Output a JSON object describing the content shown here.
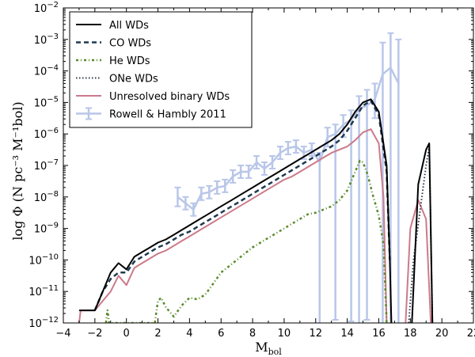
{
  "chart_data": {
    "type": "line",
    "title": "",
    "xlabel": "M",
    "xlabel_sub": "bol",
    "ylabel": "log Φ (N pc⁻³ M⁻¹bol)",
    "xlim": [
      -4,
      22
    ],
    "ylim_exp": [
      -12,
      -2
    ],
    "yscale": "log",
    "xticks": [
      -4,
      -2,
      0,
      2,
      4,
      6,
      8,
      10,
      12,
      14,
      16,
      18,
      20,
      22
    ],
    "yticks_exp": [
      -12,
      -11,
      -10,
      -9,
      -8,
      -7,
      -6,
      -5,
      -4,
      -3,
      -2
    ],
    "legend": {
      "position": "top-left",
      "entries": [
        {
          "label": "All WDs",
          "series": "all"
        },
        {
          "label": "CO WDs",
          "series": "co"
        },
        {
          "label": "He WDs",
          "series": "he"
        },
        {
          "label": "ONe WDs",
          "series": "one"
        },
        {
          "label": "Unresolved binary WDs",
          "series": "bin"
        },
        {
          "label": "Rowell & Hambly 2011",
          "series": "obs"
        }
      ]
    },
    "series": [
      {
        "id": "all",
        "name": "All WDs",
        "color": "#000000",
        "dash": "",
        "width": 2,
        "x": [
          -3,
          -2,
          -1.5,
          -1,
          -0.5,
          0,
          0.5,
          1,
          1.5,
          2,
          2.5,
          3,
          3.5,
          4,
          4.5,
          5,
          5.5,
          6,
          6.5,
          7,
          7.5,
          8,
          8.5,
          9,
          9.5,
          10,
          10.5,
          11,
          11.5,
          12,
          12.5,
          13,
          13.5,
          14,
          14.5,
          15,
          15.5,
          16,
          16.5,
          16.7,
          16.8
        ],
        "logy": [
          -11.6,
          -11.6,
          -11.0,
          -10.4,
          -10.1,
          -10.3,
          -9.9,
          -9.75,
          -9.6,
          -9.45,
          -9.35,
          -9.2,
          -9.05,
          -8.9,
          -8.75,
          -8.6,
          -8.45,
          -8.3,
          -8.15,
          -8.0,
          -7.85,
          -7.7,
          -7.55,
          -7.4,
          -7.25,
          -7.1,
          -6.95,
          -6.8,
          -6.65,
          -6.5,
          -6.35,
          -6.2,
          -6.0,
          -5.7,
          -5.3,
          -5.0,
          -4.9,
          -5.3,
          -7.0,
          -10.0,
          -12
        ]
      },
      {
        "id": "all2",
        "name": "All WDs (faint peak)",
        "color": "#000000",
        "dash": "",
        "width": 2,
        "x": [
          18.1,
          18.5,
          19.0,
          19.2,
          19.4
        ],
        "logy": [
          -12,
          -7.6,
          -6.5,
          -6.3,
          -12
        ]
      },
      {
        "id": "co",
        "name": "CO WDs",
        "color": "#1f3a50",
        "dash": "6,4",
        "width": 2.5,
        "x": [
          -2,
          -1.5,
          -1,
          -0.5,
          0,
          0.5,
          1,
          1.5,
          2,
          2.5,
          3,
          3.5,
          4,
          4.5,
          5,
          5.5,
          6,
          6.5,
          7,
          7.5,
          8,
          8.5,
          9,
          9.5,
          10,
          10.5,
          11,
          11.5,
          12,
          12.5,
          13,
          13.5,
          14,
          14.5,
          15,
          15.5,
          16,
          16.5,
          16.7
        ],
        "logy": [
          -11.6,
          -11.0,
          -10.6,
          -10.4,
          -10.4,
          -10.05,
          -9.9,
          -9.75,
          -9.6,
          -9.5,
          -9.35,
          -9.2,
          -9.1,
          -8.95,
          -8.8,
          -8.65,
          -8.5,
          -8.35,
          -8.2,
          -8.05,
          -7.9,
          -7.75,
          -7.6,
          -7.45,
          -7.3,
          -7.15,
          -7.0,
          -6.85,
          -6.7,
          -6.55,
          -6.4,
          -6.2,
          -5.9,
          -5.5,
          -5.1,
          -4.95,
          -5.4,
          -7.2,
          -10.0
        ]
      },
      {
        "id": "he",
        "name": "He WDs",
        "color": "#5a8a2a",
        "dash": "3,3,1,3",
        "width": 2.5,
        "x": [
          -1.3,
          -1.2,
          -1.1,
          1.8,
          2.0,
          2.2,
          2.5,
          3.0,
          3.5,
          4.0,
          4.5,
          5.0,
          5.5,
          6.0,
          6.5,
          7.0,
          7.5,
          8.0,
          8.5,
          9.0,
          9.5,
          10.0,
          10.5,
          11.0,
          11.5,
          12.0,
          12.5,
          13.0,
          13.5,
          14.0,
          14.5,
          14.8,
          15.0,
          15.3,
          15.6,
          16.0,
          16.3,
          16.5
        ],
        "logy": [
          -12,
          -11.6,
          -12,
          -12,
          -11.3,
          -11.2,
          -11.5,
          -11.8,
          -11.45,
          -11.2,
          -11.25,
          -11.1,
          -10.75,
          -10.4,
          -10.2,
          -10.0,
          -9.8,
          -9.6,
          -9.45,
          -9.3,
          -9.15,
          -9.0,
          -8.85,
          -8.7,
          -8.55,
          -8.5,
          -8.4,
          -8.3,
          -8.1,
          -7.8,
          -7.2,
          -6.85,
          -6.9,
          -7.3,
          -7.9,
          -8.6,
          -9.5,
          -12
        ]
      },
      {
        "id": "one",
        "name": "ONe WDs",
        "color": "#2a3a4a",
        "dash": "1.5,2.5",
        "width": 2,
        "x": [
          17.9,
          18.2,
          18.6,
          19.0,
          19.2,
          19.4
        ],
        "logy": [
          -12,
          -10.0,
          -8.5,
          -7.0,
          -6.4,
          -12
        ]
      },
      {
        "id": "bin",
        "name": "Unresolved binary WDs",
        "color": "#cc7a8a",
        "dash": "",
        "width": 2,
        "x": [
          -3,
          -2.9,
          -2.6,
          -2,
          -1.5,
          -1,
          -0.5,
          0,
          0.5,
          1,
          1.5,
          2,
          2.5,
          3,
          3.5,
          4,
          4.5,
          5,
          5.5,
          6,
          6.5,
          7,
          7.5,
          8,
          8.5,
          9,
          9.5,
          10,
          10.5,
          11,
          11.5,
          12,
          12.5,
          13,
          13.5,
          14,
          14.5,
          15,
          15.5,
          16,
          16.3,
          16.5
        ],
        "logy": [
          -12,
          -11.6,
          -11.6,
          -11.6,
          -11.3,
          -11.0,
          -10.5,
          -10.8,
          -10.25,
          -10.1,
          -9.95,
          -9.8,
          -9.7,
          -9.55,
          -9.4,
          -9.25,
          -9.1,
          -8.95,
          -8.8,
          -8.65,
          -8.5,
          -8.35,
          -8.2,
          -8.05,
          -7.9,
          -7.75,
          -7.6,
          -7.45,
          -7.35,
          -7.2,
          -7.05,
          -6.9,
          -6.75,
          -6.6,
          -6.5,
          -6.4,
          -6.2,
          -5.95,
          -5.85,
          -6.3,
          -8.0,
          -12
        ]
      },
      {
        "id": "bin2",
        "name": "Unresolved binary WDs (faint)",
        "color": "#cc7a8a",
        "dash": "",
        "width": 2,
        "x": [
          17.7,
          18.0,
          18.5,
          19.0,
          19.3
        ],
        "logy": [
          -12,
          -9.0,
          -8.1,
          -8.7,
          -12
        ]
      }
    ],
    "observations": {
      "name": "Rowell & Hambly 2011",
      "color": "#b8c6e8",
      "x": [
        3.25,
        3.75,
        4.25,
        4.75,
        5.25,
        5.75,
        6.25,
        6.75,
        7.25,
        7.75,
        8.25,
        8.75,
        9.25,
        9.75,
        10.25,
        10.75,
        11.25,
        11.75,
        12.25,
        12.75,
        13.25,
        13.75,
        14.25,
        14.75,
        15.25,
        15.75,
        16.25,
        16.75,
        17.25
      ],
      "logy": [
        -8.0,
        -8.2,
        -8.4,
        -7.9,
        -7.85,
        -7.7,
        -7.65,
        -7.35,
        -7.2,
        -7.2,
        -6.9,
        -7.1,
        -6.9,
        -6.6,
        -6.45,
        -6.4,
        -6.6,
        -6.5,
        -6.9,
        -6.1,
        -6.0,
        -5.7,
        -5.55,
        -5.2,
        -5.1,
        -4.9,
        -4.1,
        -3.9,
        -4.4
      ],
      "err_up": [
        0.3,
        0.2,
        0.2,
        0.2,
        0.2,
        0.2,
        0.2,
        0.2,
        0.2,
        0.2,
        0.2,
        0.2,
        0.2,
        0.2,
        0.2,
        0.2,
        0.2,
        0.2,
        0.3,
        0.3,
        0.3,
        0.3,
        0.3,
        0.4,
        0.5,
        0.5,
        1.0,
        1.1,
        1.4
      ],
      "err_down": [
        0.3,
        0.2,
        0.2,
        0.2,
        0.2,
        0.2,
        0.2,
        0.2,
        0.2,
        0.2,
        0.2,
        0.2,
        0.2,
        0.2,
        0.2,
        0.2,
        0.2,
        0.2,
        5.1,
        0.3,
        5.9,
        0.4,
        6.4,
        6.8,
        6.8,
        0.6,
        7.9,
        8.1,
        7.6
      ]
    }
  }
}
